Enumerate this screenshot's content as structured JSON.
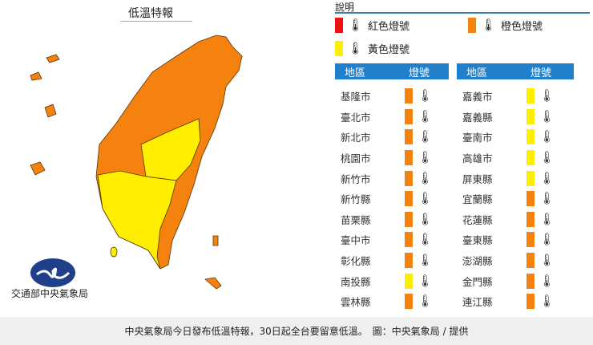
{
  "title": "低溫特報",
  "agency": "交通部中央氣象局",
  "legend": {
    "title": "說明",
    "items": [
      {
        "label": "紅色燈號",
        "color": "#ee1111",
        "icon": "thermometer-icon"
      },
      {
        "label": "橙色燈號",
        "color": "#f5820f",
        "icon": "thermometer-icon"
      },
      {
        "label": "黃色燈號",
        "color": "#ffee00",
        "icon": "thermometer-icon"
      }
    ]
  },
  "table": {
    "headers": [
      "地區",
      "燈號"
    ],
    "left": [
      {
        "region": "基隆市",
        "level": "orange"
      },
      {
        "region": "臺北市",
        "level": "orange"
      },
      {
        "region": "新北市",
        "level": "orange"
      },
      {
        "region": "桃園市",
        "level": "orange"
      },
      {
        "region": "新竹市",
        "level": "orange"
      },
      {
        "region": "新竹縣",
        "level": "orange"
      },
      {
        "region": "苗栗縣",
        "level": "orange"
      },
      {
        "region": "臺中市",
        "level": "orange"
      },
      {
        "region": "彰化縣",
        "level": "orange"
      },
      {
        "region": "南投縣",
        "level": "yellow"
      },
      {
        "region": "雲林縣",
        "level": "orange"
      }
    ],
    "right": [
      {
        "region": "嘉義市",
        "level": "yellow"
      },
      {
        "region": "嘉義縣",
        "level": "yellow"
      },
      {
        "region": "臺南市",
        "level": "yellow"
      },
      {
        "region": "高雄市",
        "level": "yellow"
      },
      {
        "region": "屏東縣",
        "level": "yellow"
      },
      {
        "region": "宜蘭縣",
        "level": "orange"
      },
      {
        "region": "花蓮縣",
        "level": "orange"
      },
      {
        "region": "臺東縣",
        "level": "orange"
      },
      {
        "region": "澎湖縣",
        "level": "orange"
      },
      {
        "region": "金門縣",
        "level": "orange"
      },
      {
        "region": "連江縣",
        "level": "orange"
      }
    ]
  },
  "colors": {
    "orange": "#f5820f",
    "yellow": "#ffee00",
    "red": "#ee1111",
    "header": "#2080cc"
  },
  "caption": "中央氣象局今日發布低溫特報，30日起全台要留意低溫。　圖：中央氣象局 / 提供"
}
